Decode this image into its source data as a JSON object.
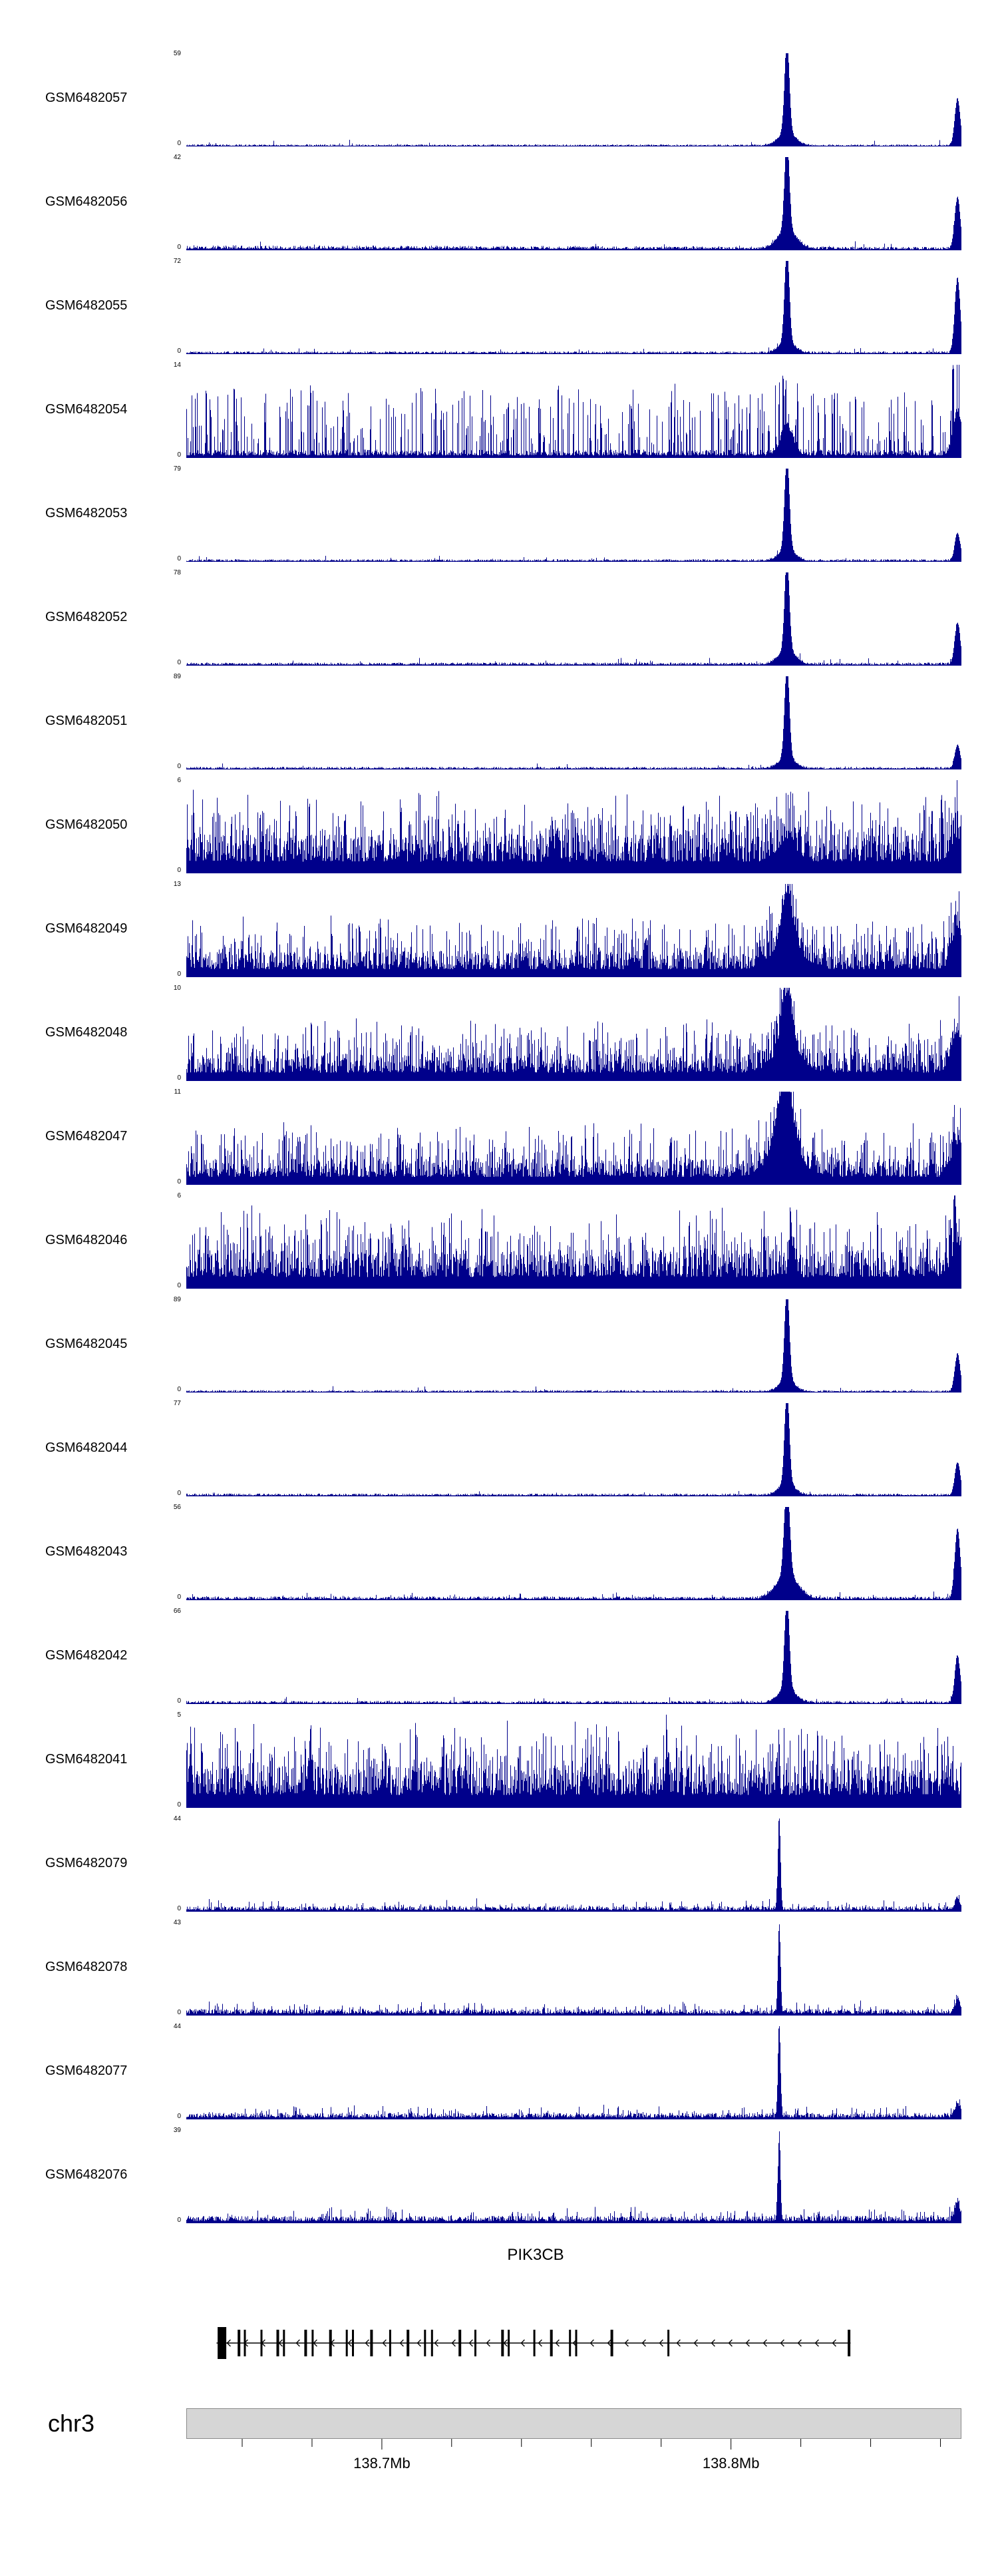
{
  "figure": {
    "type": "genome-browser-coverage-tracks",
    "chromosome_label": "chr3",
    "gene_track": {
      "gene_name": "PIK3CB",
      "strand": "-",
      "start_rel": 0.039,
      "end_rel": 0.857,
      "exons": [
        {
          "x": 0.046,
          "w": 13,
          "tall": true
        },
        {
          "x": 0.068,
          "w": 4
        },
        {
          "x": 0.0755,
          "w": 3
        },
        {
          "x": 0.097,
          "w": 3
        },
        {
          "x": 0.118,
          "w": 4
        },
        {
          "x": 0.126,
          "w": 3
        },
        {
          "x": 0.154,
          "w": 4
        },
        {
          "x": 0.163,
          "w": 3
        },
        {
          "x": 0.186,
          "w": 4
        },
        {
          "x": 0.207,
          "w": 3
        },
        {
          "x": 0.215,
          "w": 3
        },
        {
          "x": 0.239,
          "w": 4
        },
        {
          "x": 0.263,
          "w": 3
        },
        {
          "x": 0.286,
          "w": 4
        },
        {
          "x": 0.308,
          "w": 3
        },
        {
          "x": 0.317,
          "w": 3
        },
        {
          "x": 0.353,
          "w": 4
        },
        {
          "x": 0.373,
          "w": 3
        },
        {
          "x": 0.408,
          "w": 4
        },
        {
          "x": 0.416,
          "w": 3
        },
        {
          "x": 0.449,
          "w": 3
        },
        {
          "x": 0.471,
          "w": 4
        },
        {
          "x": 0.495,
          "w": 3
        },
        {
          "x": 0.503,
          "w": 3
        },
        {
          "x": 0.549,
          "w": 4
        },
        {
          "x": 0.622,
          "w": 3
        },
        {
          "x": 0.855,
          "w": 4
        }
      ]
    },
    "axis": {
      "major_ticks": [
        {
          "rel": 0.2523,
          "label": "138.7Mb"
        },
        {
          "rel": 0.7027,
          "label": "138.8Mb"
        }
      ],
      "minor_ticks_rel": [
        0.0721,
        0.1622,
        0.3423,
        0.4324,
        0.5225,
        0.6126,
        0.7928,
        0.8829,
        0.973
      ]
    }
  },
  "chart_data": {
    "type": "area",
    "title": "",
    "xlabel": "",
    "ylabel": "",
    "chromosome": "chr3",
    "x_range_mb": [
      138.644,
      138.866
    ],
    "x_tick_labels": [
      "138.7Mb",
      "138.8Mb"
    ],
    "signal_color": "#00008B",
    "legend": "none",
    "grid": false,
    "tracks": [
      {
        "label": "GSM6482057",
        "ymax": 59,
        "ylim": [
          0,
          59
        ],
        "signal_profile": {
          "noise": 0.022,
          "spike_prob": 0.012,
          "spike_amp": 0.06,
          "peaks": [
            {
              "x": 0.775,
              "h": 1.0,
              "w": 0.003
            },
            {
              "x": 0.775,
              "h": 0.14,
              "w": 0.011
            },
            {
              "x": 0.995,
              "h": 0.5,
              "w": 0.0035
            }
          ]
        }
      },
      {
        "label": "GSM6482056",
        "ymax": 42,
        "ylim": [
          0,
          42
        ],
        "signal_profile": {
          "noise": 0.055,
          "spike_prob": 0.03,
          "spike_amp": 0.07,
          "tilt": 0.35,
          "peaks": [
            {
              "x": 0.775,
              "h": 1.0,
              "w": 0.003
            },
            {
              "x": 0.775,
              "h": 0.2,
              "w": 0.012
            },
            {
              "x": 0.995,
              "h": 0.55,
              "w": 0.0035
            }
          ]
        }
      },
      {
        "label": "GSM6482055",
        "ymax": 72,
        "ylim": [
          0,
          72
        ],
        "signal_profile": {
          "noise": 0.03,
          "spike_prob": 0.015,
          "spike_amp": 0.05,
          "peaks": [
            {
              "x": 0.775,
              "h": 1.0,
              "w": 0.003
            },
            {
              "x": 0.775,
              "h": 0.12,
              "w": 0.01
            },
            {
              "x": 0.995,
              "h": 0.8,
              "w": 0.0035
            }
          ]
        }
      },
      {
        "label": "GSM6482054",
        "ymax": 14,
        "ylim": [
          0,
          14
        ],
        "signal_profile": {
          "noise": 0.09,
          "spike_prob": 0.28,
          "spike_amp": 0.72,
          "peaks": [
            {
              "x": 0.775,
              "h": 0.3,
              "w": 0.008
            },
            {
              "x": 0.995,
              "h": 0.45,
              "w": 0.006
            }
          ]
        }
      },
      {
        "label": "GSM6482053",
        "ymax": 79,
        "ylim": [
          0,
          79
        ],
        "signal_profile": {
          "noise": 0.028,
          "spike_prob": 0.015,
          "spike_amp": 0.05,
          "peaks": [
            {
              "x": 0.775,
              "h": 1.0,
              "w": 0.003
            },
            {
              "x": 0.775,
              "h": 0.13,
              "w": 0.01
            },
            {
              "x": 0.995,
              "h": 0.3,
              "w": 0.0035
            }
          ]
        }
      },
      {
        "label": "GSM6482052",
        "ymax": 78,
        "ylim": [
          0,
          78
        ],
        "signal_profile": {
          "noise": 0.033,
          "spike_prob": 0.02,
          "spike_amp": 0.06,
          "peaks": [
            {
              "x": 0.775,
              "h": 1.0,
              "w": 0.003
            },
            {
              "x": 0.775,
              "h": 0.15,
              "w": 0.011
            },
            {
              "x": 0.995,
              "h": 0.45,
              "w": 0.0035
            }
          ]
        }
      },
      {
        "label": "GSM6482051",
        "ymax": 89,
        "ylim": [
          0,
          89
        ],
        "signal_profile": {
          "noise": 0.028,
          "spike_prob": 0.015,
          "spike_amp": 0.05,
          "peaks": [
            {
              "x": 0.775,
              "h": 1.0,
              "w": 0.003
            },
            {
              "x": 0.775,
              "h": 0.12,
              "w": 0.01
            },
            {
              "x": 0.995,
              "h": 0.25,
              "w": 0.0035
            }
          ]
        }
      },
      {
        "label": "GSM6482050",
        "ymax": 6,
        "ylim": [
          0,
          6
        ],
        "signal_profile": {
          "noise": 0.42,
          "spike_prob": 0.35,
          "spike_amp": 0.5,
          "peaks": [
            {
              "x": 0.775,
              "h": 0.22,
              "w": 0.012
            },
            {
              "x": 0.995,
              "h": 0.25,
              "w": 0.008
            }
          ]
        }
      },
      {
        "label": "GSM6482049",
        "ymax": 13,
        "ylim": [
          0,
          13
        ],
        "signal_profile": {
          "noise": 0.28,
          "spike_prob": 0.3,
          "spike_amp": 0.42,
          "peaks": [
            {
              "x": 0.775,
              "h": 0.55,
              "w": 0.007
            },
            {
              "x": 0.775,
              "h": 0.25,
              "w": 0.02
            },
            {
              "x": 0.995,
              "h": 0.45,
              "w": 0.007
            }
          ]
        }
      },
      {
        "label": "GSM6482048",
        "ymax": 10,
        "ylim": [
          0,
          10
        ],
        "signal_profile": {
          "noise": 0.3,
          "spike_prob": 0.3,
          "spike_amp": 0.42,
          "peaks": [
            {
              "x": 0.775,
              "h": 0.6,
              "w": 0.007
            },
            {
              "x": 0.775,
              "h": 0.25,
              "w": 0.018
            },
            {
              "x": 0.995,
              "h": 0.4,
              "w": 0.008
            }
          ]
        }
      },
      {
        "label": "GSM6482047",
        "ymax": 11,
        "ylim": [
          0,
          11
        ],
        "signal_profile": {
          "noise": 0.28,
          "spike_prob": 0.3,
          "spike_amp": 0.42,
          "peaks": [
            {
              "x": 0.772,
              "h": 0.68,
              "w": 0.01
            },
            {
              "x": 0.772,
              "h": 0.3,
              "w": 0.02
            },
            {
              "x": 0.995,
              "h": 0.35,
              "w": 0.008
            }
          ]
        }
      },
      {
        "label": "GSM6482046",
        "ymax": 6,
        "ylim": [
          0,
          6
        ],
        "signal_profile": {
          "noise": 0.42,
          "spike_prob": 0.35,
          "spike_amp": 0.5,
          "peaks": [
            {
              "x": 0.78,
              "h": 0.5,
              "w": 0.0025
            },
            {
              "x": 0.995,
              "h": 0.3,
              "w": 0.008
            }
          ]
        }
      },
      {
        "label": "GSM6482045",
        "ymax": 89,
        "ylim": [
          0,
          89
        ],
        "signal_profile": {
          "noise": 0.025,
          "spike_prob": 0.012,
          "spike_amp": 0.05,
          "peaks": [
            {
              "x": 0.775,
              "h": 1.0,
              "w": 0.003
            },
            {
              "x": 0.775,
              "h": 0.12,
              "w": 0.01
            },
            {
              "x": 0.995,
              "h": 0.4,
              "w": 0.0035
            }
          ]
        }
      },
      {
        "label": "GSM6482044",
        "ymax": 77,
        "ylim": [
          0,
          77
        ],
        "signal_profile": {
          "noise": 0.03,
          "spike_prob": 0.015,
          "spike_amp": 0.05,
          "peaks": [
            {
              "x": 0.775,
              "h": 1.0,
              "w": 0.003
            },
            {
              "x": 0.775,
              "h": 0.13,
              "w": 0.01
            },
            {
              "x": 0.995,
              "h": 0.35,
              "w": 0.0035
            }
          ]
        }
      },
      {
        "label": "GSM6482043",
        "ymax": 56,
        "ylim": [
          0,
          56
        ],
        "signal_profile": {
          "noise": 0.04,
          "spike_prob": 0.02,
          "spike_amp": 0.06,
          "peaks": [
            {
              "x": 0.775,
              "h": 1.0,
              "w": 0.0035
            },
            {
              "x": 0.775,
              "h": 0.25,
              "w": 0.014
            },
            {
              "x": 0.995,
              "h": 0.75,
              "w": 0.0035
            }
          ]
        }
      },
      {
        "label": "GSM6482042",
        "ymax": 66,
        "ylim": [
          0,
          66
        ],
        "signal_profile": {
          "noise": 0.033,
          "spike_prob": 0.018,
          "spike_amp": 0.06,
          "peaks": [
            {
              "x": 0.775,
              "h": 1.0,
              "w": 0.003
            },
            {
              "x": 0.775,
              "h": 0.15,
              "w": 0.011
            },
            {
              "x": 0.995,
              "h": 0.5,
              "w": 0.0035
            }
          ]
        }
      },
      {
        "label": "GSM6482041",
        "ymax": 5,
        "ylim": [
          0,
          5
        ],
        "signal_profile": {
          "noise": 0.46,
          "spike_prob": 0.35,
          "spike_amp": 0.5,
          "peaks": [
            {
              "x": 0.16,
              "h": 0.5,
              "w": 0.002
            },
            {
              "x": 0.62,
              "h": 0.45,
              "w": 0.002
            }
          ]
        }
      },
      {
        "label": "GSM6482079",
        "ymax": 44,
        "ylim": [
          0,
          44
        ],
        "signal_profile": {
          "noise": 0.06,
          "spike_prob": 0.1,
          "spike_amp": 0.09,
          "peaks": [
            {
              "x": 0.765,
              "h": 1.0,
              "w": 0.0016
            },
            {
              "x": 0.995,
              "h": 0.12,
              "w": 0.003
            }
          ]
        }
      },
      {
        "label": "GSM6482078",
        "ymax": 43,
        "ylim": [
          0,
          43
        ],
        "signal_profile": {
          "noise": 0.07,
          "spike_prob": 0.12,
          "spike_amp": 0.1,
          "peaks": [
            {
              "x": 0.765,
              "h": 0.95,
              "w": 0.0016
            },
            {
              "x": 0.995,
              "h": 0.15,
              "w": 0.003
            }
          ]
        }
      },
      {
        "label": "GSM6482077",
        "ymax": 44,
        "ylim": [
          0,
          44
        ],
        "signal_profile": {
          "noise": 0.07,
          "spike_prob": 0.12,
          "spike_amp": 0.1,
          "peaks": [
            {
              "x": 0.765,
              "h": 1.0,
              "w": 0.0016
            },
            {
              "x": 0.995,
              "h": 0.15,
              "w": 0.003
            }
          ]
        }
      },
      {
        "label": "GSM6482076",
        "ymax": 39,
        "ylim": [
          0,
          39
        ],
        "signal_profile": {
          "noise": 0.08,
          "spike_prob": 0.12,
          "spike_amp": 0.11,
          "peaks": [
            {
              "x": 0.765,
              "h": 0.9,
              "w": 0.0016
            },
            {
              "x": 0.995,
              "h": 0.2,
              "w": 0.003
            }
          ]
        }
      }
    ]
  }
}
